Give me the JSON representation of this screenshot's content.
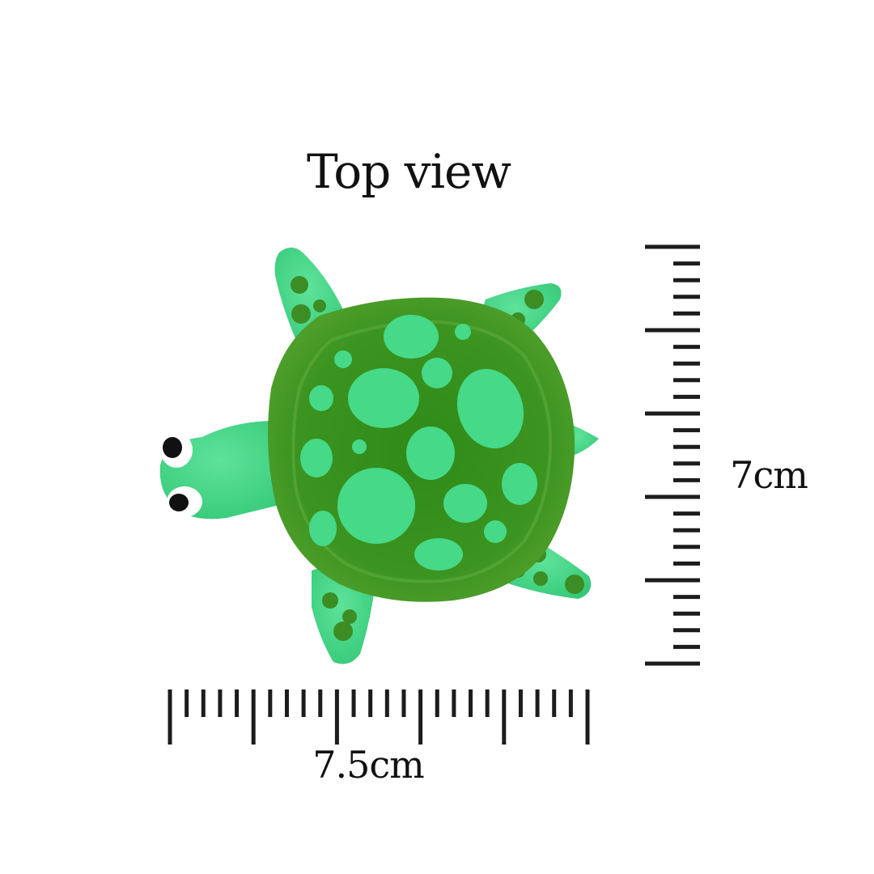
{
  "title": "Top view",
  "width_label": "7.5cm",
  "height_label": "7cm",
  "colors": {
    "background": "#ffffff",
    "ink": "#1c1c1c",
    "shell_dark": "#3f8f1f",
    "shell_mid": "#4a9e27",
    "skin_light": "#45d988",
    "spot_dark": "#3b8d24"
  },
  "subject": {
    "icon": "turtle-figurine-icon"
  }
}
